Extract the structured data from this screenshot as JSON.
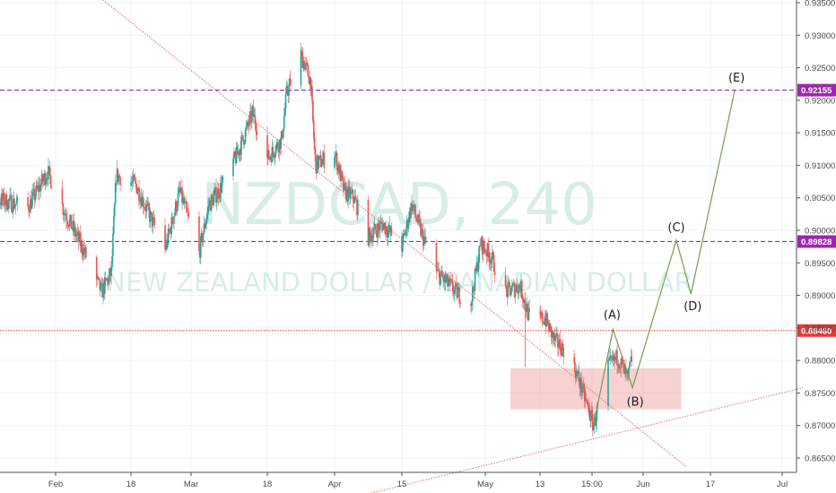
{
  "chart_data": {
    "type": "candlestick",
    "watermark": {
      "symbol": "NZDCAD, 240",
      "name": "NEW ZEALAND DOLLAR / CANADIAN DOLLAR"
    },
    "x_tick_labels": [
      "Feb",
      "18",
      "Mar",
      "18",
      "Apr",
      "15",
      "May",
      "13",
      "15:00",
      "Jun",
      "17",
      "Jul"
    ],
    "y_tick_labels": [
      "0.93500",
      "0.93000",
      "0.92500",
      "0.92000",
      "0.91500",
      "0.91000",
      "0.90500",
      "0.90000",
      "0.89500",
      "0.89000",
      "0.88500",
      "0.88000",
      "0.87500",
      "0.87000",
      "0.86500"
    ],
    "ylim": [
      0.8625,
      0.9355
    ],
    "grid": true,
    "price_levels": [
      {
        "label": "0.92155",
        "value": 0.92155,
        "style": "dashed",
        "color": "#9c27b0"
      },
      {
        "label": "0.89828",
        "value": 0.89828,
        "style": "dashed",
        "color": "#9c27b0"
      },
      {
        "label": "0.88460",
        "value": 0.8846,
        "style": "dotted",
        "color": "#e53935"
      }
    ],
    "support_zone": {
      "top": 0.8788,
      "bottom": 0.8725,
      "color": "#ef9a9a"
    },
    "trendlines": [
      {
        "from": [
          "2019-01-15",
          0.9525
        ],
        "to": [
          "2019-06-12",
          0.8637
        ]
      },
      {
        "from": [
          "2019-04-08",
          0.8595
        ],
        "to": [
          "2019-07-06",
          0.8758
        ]
      }
    ],
    "wave_labels": [
      "(A)",
      "(B)",
      "(C)",
      "(D)",
      "(E)"
    ],
    "colors": {
      "up": "#26a69a",
      "down": "#ef5350",
      "projection": "#7a9a52",
      "levels": "#9c27b0"
    }
  }
}
